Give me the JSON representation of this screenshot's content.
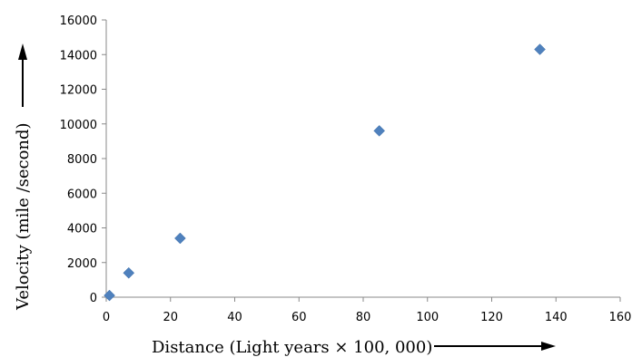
{
  "chart_data": {
    "type": "scatter",
    "title": "",
    "xlabel": "Distance (Light years × 100, 000)",
    "ylabel": "Velocity (mile /second)",
    "xlim": [
      0,
      160
    ],
    "ylim": [
      0,
      16000
    ],
    "x_ticks": [
      0,
      20,
      40,
      60,
      80,
      100,
      120,
      140,
      160
    ],
    "y_ticks": [
      0,
      2000,
      4000,
      6000,
      8000,
      10000,
      12000,
      14000,
      16000
    ],
    "x_tick_labels": [
      "0",
      "20",
      "40",
      "60",
      "80",
      "100",
      "120",
      "140",
      "160"
    ],
    "y_tick_labels": [
      "0",
      "2000",
      "4000",
      "6000",
      "8000",
      "10000",
      "12000",
      "14000",
      "16000"
    ],
    "grid": false,
    "marker": "diamond",
    "marker_color": "#4f81bd",
    "series": [
      {
        "points": [
          {
            "x": 1,
            "y": 100
          },
          {
            "x": 7,
            "y": 1400
          },
          {
            "x": 23,
            "y": 3400
          },
          {
            "x": 85,
            "y": 9600
          },
          {
            "x": 135,
            "y": 14300
          }
        ]
      }
    ]
  }
}
